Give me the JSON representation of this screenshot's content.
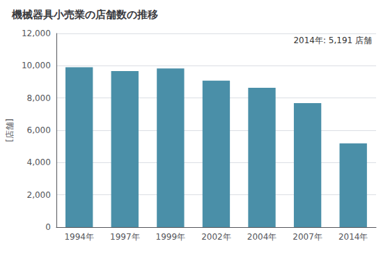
{
  "chart_data": {
    "type": "bar",
    "title": "機械器具小売業の店舗数の推移",
    "ylabel": "[店舗]",
    "annotation": "2014年: 5,191 店舗",
    "categories": [
      "1994年",
      "1997年",
      "1999年",
      "2002年",
      "2004年",
      "2007年",
      "2014年"
    ],
    "values": [
      9904,
      9674,
      9831,
      9073,
      8634,
      7680,
      5191
    ],
    "color": "#4a8fa8",
    "ylim": [
      0,
      12000
    ],
    "yticks": [
      0,
      {
        "value": 2000,
        "label": "2,000"
      },
      {
        "value": 4000,
        "label": "4,000"
      },
      {
        "value": 6000,
        "label": "6,000"
      },
      {
        "value": 8000,
        "label": "8,000"
      },
      {
        "value": 10000,
        "label": "10,000"
      },
      {
        "value": 12000,
        "label": "12,000"
      }
    ],
    "grid": true
  }
}
